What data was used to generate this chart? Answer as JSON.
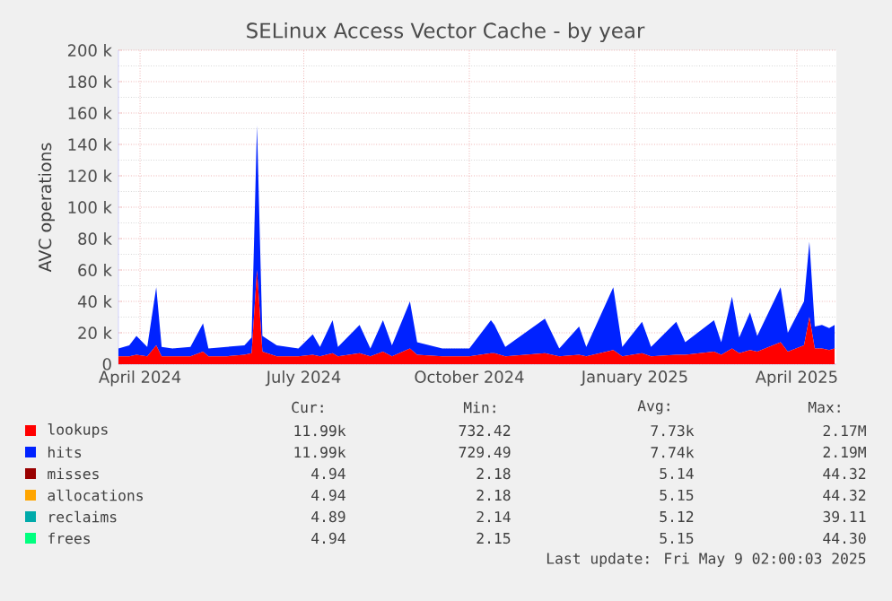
{
  "chart_data": {
    "type": "area",
    "title": "SELinux Access Vector Cache - by year",
    "ylabel": "AVC operations",
    "stacked": true,
    "grid": true,
    "legend": "bottom",
    "x": [
      "2024-03-20",
      "2024-03-26",
      "2024-03-30",
      "2024-04-05",
      "2024-04-10",
      "2024-04-13",
      "2024-04-19",
      "2024-04-29",
      "2024-05-06",
      "2024-05-09",
      "2024-05-19",
      "2024-05-29",
      "2024-06-02",
      "2024-06-05",
      "2024-06-08",
      "2024-06-16",
      "2024-06-28",
      "2024-07-06",
      "2024-07-10",
      "2024-07-17",
      "2024-07-20",
      "2024-08-01",
      "2024-08-07",
      "2024-08-14",
      "2024-08-19",
      "2024-08-29",
      "2024-09-02",
      "2024-09-16",
      "2024-10-01",
      "2024-10-13",
      "2024-10-15",
      "2024-10-21",
      "2024-11-12",
      "2024-11-20",
      "2024-12-01",
      "2024-12-05",
      "2024-12-20",
      "2024-12-25",
      "2025-01-05",
      "2025-01-10",
      "2025-01-24",
      "2025-01-29",
      "2025-02-14",
      "2025-02-18",
      "2025-02-24",
      "2025-02-28",
      "2025-03-06",
      "2025-03-10",
      "2025-03-23",
      "2025-03-27",
      "2025-04-05",
      "2025-04-08",
      "2025-04-11",
      "2025-04-15",
      "2025-04-19",
      "2025-04-22"
    ],
    "series": [
      {
        "name": "lookups",
        "color": "#ff0000",
        "values": [
          5000,
          5000,
          6000,
          5000,
          12000,
          5000,
          5000,
          5000,
          8000,
          5000,
          5000,
          6000,
          7000,
          60000,
          8000,
          5000,
          5000,
          6000,
          5000,
          7000,
          5000,
          7000,
          5000,
          8000,
          5000,
          10000,
          6000,
          5000,
          5000,
          7000,
          7000,
          5000,
          7000,
          5000,
          6000,
          5000,
          9000,
          5000,
          7000,
          5000,
          6000,
          6000,
          8000,
          6000,
          10000,
          7000,
          9000,
          8000,
          14000,
          8000,
          12000,
          30000,
          10000,
          10000,
          9000,
          10000
        ]
      },
      {
        "name": "hits",
        "color": "#0022ff",
        "values": [
          5000,
          7000,
          12000,
          6000,
          37000,
          6000,
          5000,
          6000,
          18000,
          5000,
          6000,
          6000,
          10000,
          92000,
          10000,
          7000,
          5000,
          13000,
          6000,
          21000,
          6000,
          18000,
          5000,
          20000,
          7000,
          30000,
          8000,
          5000,
          5000,
          21000,
          18000,
          6000,
          22000,
          5000,
          18000,
          6000,
          40000,
          6000,
          20000,
          6000,
          21000,
          8000,
          20000,
          8000,
          33000,
          10000,
          24000,
          10000,
          35000,
          12000,
          28000,
          48000,
          14000,
          15000,
          14000,
          15000
        ]
      },
      {
        "name": "misses",
        "color": "#990000",
        "values": [
          null,
          null,
          null,
          null,
          null,
          null,
          null,
          null,
          null,
          null,
          null,
          null,
          null,
          null,
          null,
          null,
          null,
          null,
          null,
          null,
          null,
          null,
          null,
          null,
          null,
          null,
          null,
          null,
          null,
          null,
          null,
          null,
          null,
          null,
          null,
          null,
          null,
          null,
          null,
          null,
          null,
          null,
          null,
          null,
          null,
          null,
          null,
          null,
          null,
          null,
          null,
          null,
          null,
          null,
          null,
          null
        ]
      },
      {
        "name": "allocations",
        "color": "#ffa500",
        "values": [
          null,
          null,
          null,
          null,
          null,
          null,
          null,
          null,
          null,
          null,
          null,
          null,
          null,
          null,
          null,
          null,
          null,
          null,
          null,
          null,
          null,
          null,
          null,
          null,
          null,
          null,
          null,
          null,
          null,
          null,
          null,
          null,
          null,
          null,
          null,
          null,
          null,
          null,
          null,
          null,
          null,
          null,
          null,
          null,
          null,
          null,
          null,
          null,
          null,
          null,
          null,
          null,
          null,
          null,
          null,
          null
        ]
      },
      {
        "name": "reclaims",
        "color": "#00aaaa",
        "values": [
          null,
          null,
          null,
          null,
          null,
          null,
          null,
          null,
          null,
          null,
          null,
          null,
          null,
          null,
          null,
          null,
          null,
          null,
          null,
          null,
          null,
          null,
          null,
          null,
          null,
          null,
          null,
          null,
          null,
          null,
          null,
          null,
          null,
          null,
          null,
          null,
          null,
          null,
          null,
          null,
          null,
          null,
          null,
          null,
          null,
          null,
          null,
          null,
          null,
          null,
          null,
          null,
          null,
          null,
          null,
          null
        ]
      },
      {
        "name": "frees",
        "color": "#00ff7f",
        "values": [
          null,
          null,
          null,
          null,
          null,
          null,
          null,
          null,
          null,
          null,
          null,
          null,
          null,
          null,
          null,
          null,
          null,
          null,
          null,
          null,
          null,
          null,
          null,
          null,
          null,
          null,
          null,
          null,
          null,
          null,
          null,
          null,
          null,
          null,
          null,
          null,
          null,
          null,
          null,
          null,
          null,
          null,
          null,
          null,
          null,
          null,
          null,
          null,
          null,
          null,
          null,
          null,
          null,
          null,
          null,
          null
        ]
      }
    ],
    "xlim": [
      "2024-03-20",
      "2025-04-23"
    ],
    "xticks": [
      {
        "value": "2024-04-01",
        "label": "April 2024"
      },
      {
        "value": "2024-07-01",
        "label": "July 2024"
      },
      {
        "value": "2024-10-01",
        "label": "October 2024"
      },
      {
        "value": "2025-01-01",
        "label": "January 2025"
      },
      {
        "value": "2025-04-01",
        "label": "April 2025"
      }
    ],
    "ylim": [
      0,
      200000
    ],
    "yticks": [
      0,
      {
        "value": 20000,
        "label": "20 k"
      },
      {
        "value": 40000,
        "label": "40 k"
      },
      {
        "value": 60000,
        "label": "60 k"
      },
      {
        "value": 80000,
        "label": "80 k"
      },
      {
        "value": 100000,
        "label": "100 k"
      },
      {
        "value": 120000,
        "label": "120 k"
      },
      {
        "value": 140000,
        "label": "140 k"
      },
      {
        "value": 160000,
        "label": "160 k"
      },
      {
        "value": 180000,
        "label": "180 k"
      },
      {
        "value": 200000,
        "label": "200 k"
      }
    ],
    "annotations": [
      "Cur:",
      "Min:",
      "Avg:",
      "Max:",
      "11.99k",
      "732.42",
      "7.73k",
      "2.17M",
      "11.99k",
      "729.49",
      "7.74k",
      "2.19M",
      "4.94",
      "2.18",
      "5.14",
      "44.32",
      "4.94",
      "2.18",
      "5.15",
      "44.32",
      "4.89",
      "2.14",
      "5.12",
      "39.11",
      "4.94",
      "2.15",
      "5.15",
      "44.30",
      "Last update: Fri May  9 02:00:03 2025"
    ]
  }
}
